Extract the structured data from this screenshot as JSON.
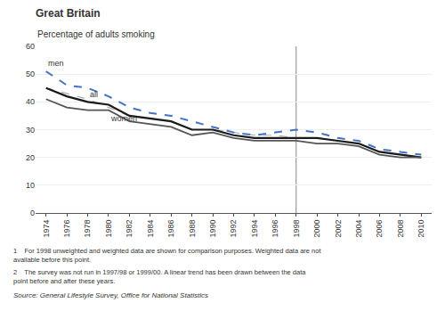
{
  "chart_data": {
    "type": "line",
    "title": "Great Britain",
    "subtitle": "Percentage of adults smoking",
    "footnotes": [
      "1    For 1998 unweighted and weighted data are shown for comparison purposes. Weighted data are not available before this point.",
      "2    The survey was not run in 1997/98 or 1999/00. A linear trend has been drawn between the data point before and after these years."
    ],
    "source": "Source: General Lifestyle Survey, Office for National Statistics",
    "text_color": "#333333",
    "xlim": [
      1973,
      2011
    ],
    "xticks": [
      1974,
      1976,
      1978,
      1980,
      1982,
      1984,
      1986,
      1988,
      1990,
      1992,
      1994,
      1996,
      1998,
      2000,
      2002,
      2004,
      2006,
      2008,
      2010
    ],
    "ylim": [
      0,
      60
    ],
    "yticks": [
      0,
      10,
      20,
      30,
      40,
      50,
      60
    ],
    "grid": "y",
    "vline": {
      "x": 1998,
      "color": "#888888"
    },
    "series": [
      {
        "x": [
          1974,
          1976,
          1978,
          1980,
          1982,
          1984,
          1986,
          1988,
          1990,
          1992,
          1994,
          1996,
          1998
        ],
        "values": [
          45,
          43,
          41,
          38,
          35,
          34,
          33,
          30,
          30,
          29,
          28,
          28,
          27
        ],
        "color": "#AAAAAA",
        "line_style": "dash"
      },
      {
        "x": [
          1998,
          2000,
          2002,
          2004,
          2006,
          2008,
          2010
        ],
        "values": [
          27,
          27,
          26,
          25,
          22,
          21,
          20
        ],
        "color": "#AAAAAA",
        "line_style": "dash"
      },
      {
        "name": "men",
        "x": [
          1974,
          1976,
          1978,
          1980,
          1982,
          1984,
          1986,
          1988,
          1990,
          1992,
          1994,
          1996,
          1998,
          2000,
          2002,
          2004,
          2006,
          2008,
          2010
        ],
        "values": [
          51,
          46,
          45,
          42,
          38,
          36,
          35,
          33,
          31,
          29,
          28,
          29,
          30,
          29,
          27,
          26,
          23,
          22,
          21
        ],
        "color": "#4472C4",
        "line_style": "dash"
      },
      {
        "name": "all",
        "x": [
          1974,
          1976,
          1978,
          1980,
          1982,
          1984,
          1986,
          1988,
          1990,
          1992,
          1994,
          1996,
          1998,
          2000,
          2002,
          2004,
          2006,
          2008,
          2010
        ],
        "values": [
          45,
          42,
          40,
          39,
          35,
          34,
          33,
          30,
          30,
          28,
          27,
          27,
          27,
          27,
          26,
          25,
          22,
          21,
          20
        ],
        "color": "#1a1a1a",
        "line_style": "solid"
      },
      {
        "name": "women",
        "x": [
          1974,
          1976,
          1978,
          1980,
          1982,
          1984,
          1986,
          1988,
          1990,
          1992,
          1994,
          1996,
          1998,
          2000,
          2002,
          2004,
          2006,
          2008,
          2010
        ],
        "values": [
          41,
          38,
          37,
          37,
          33,
          32,
          31,
          28,
          29,
          27,
          26,
          26,
          26,
          25,
          25,
          24,
          21,
          20,
          20
        ],
        "color": "#555555",
        "line_style": "solid"
      }
    ]
  }
}
